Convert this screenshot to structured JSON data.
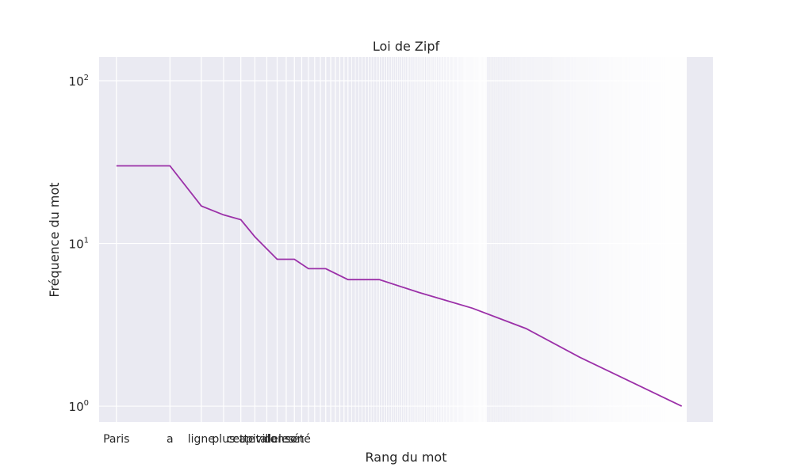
{
  "chart_data": {
    "type": "line",
    "title": "Loi de Zipf",
    "xlabel": "Rang du mot",
    "ylabel": "Fréquence du mot",
    "x_scale": "log",
    "y_scale": "log",
    "grid": true,
    "xlim": [
      0.8,
      1600
    ],
    "ylim": [
      0.8,
      140
    ],
    "y_ticks": [
      {
        "value": 1,
        "base": "10",
        "exp": "0"
      },
      {
        "value": 10,
        "base": "10",
        "exp": "1"
      },
      {
        "value": 100,
        "base": "10",
        "exp": "2"
      }
    ],
    "x_tick_labels": [
      "Paris",
      "a",
      "ligne",
      "plus",
      "cette",
      "capitale",
      "ville",
      "dans",
      "les",
      "son",
      "été"
    ],
    "line_color": "#9b30a8",
    "series": [
      {
        "x": [
          1,
          2,
          3,
          4,
          5,
          6,
          8,
          10,
          12,
          15,
          20,
          30,
          50,
          100,
          200,
          400,
          1500
        ],
        "y": [
          30,
          30,
          17,
          15,
          14,
          11,
          8,
          8,
          7,
          7,
          6,
          6,
          5,
          4,
          3,
          2,
          1
        ]
      }
    ]
  }
}
